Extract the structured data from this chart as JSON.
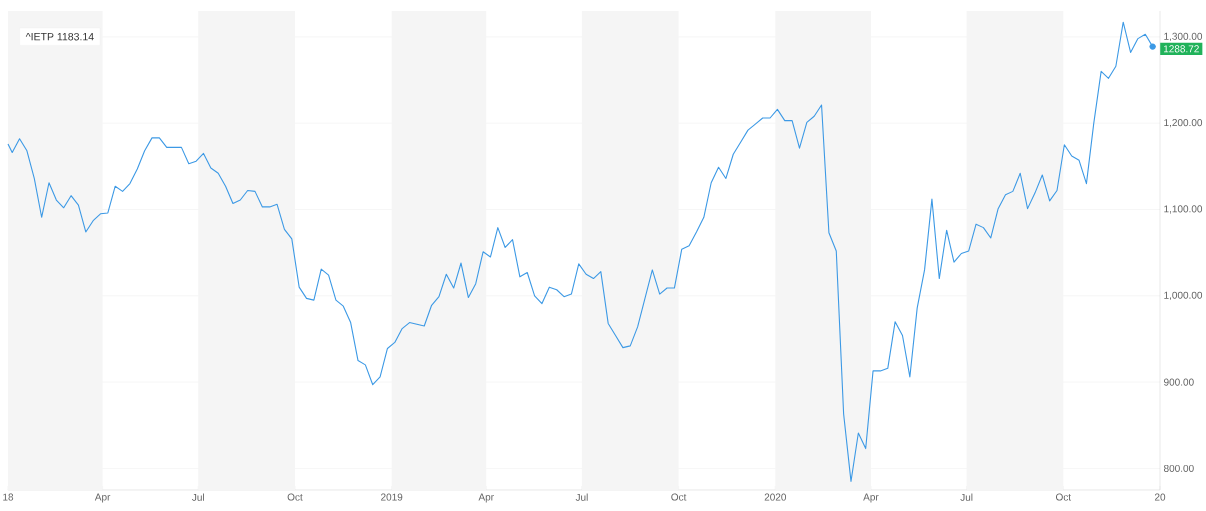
{
  "chart_data": {
    "type": "line",
    "x": [
      "2018-01-01",
      "2018-01-05",
      "2018-01-12",
      "2018-01-19",
      "2018-01-26",
      "2018-02-02",
      "2018-02-09",
      "2018-02-16",
      "2018-02-23",
      "2018-03-02",
      "2018-03-09",
      "2018-03-16",
      "2018-03-23",
      "2018-03-30",
      "2018-04-06",
      "2018-04-13",
      "2018-04-20",
      "2018-04-27",
      "2018-05-04",
      "2018-05-11",
      "2018-05-18",
      "2018-05-25",
      "2018-06-01",
      "2018-06-08",
      "2018-06-15",
      "2018-06-22",
      "2018-06-29",
      "2018-07-06",
      "2018-07-13",
      "2018-07-20",
      "2018-07-27",
      "2018-08-03",
      "2018-08-10",
      "2018-08-17",
      "2018-08-24",
      "2018-08-31",
      "2018-09-07",
      "2018-09-14",
      "2018-09-21",
      "2018-09-28",
      "2018-10-05",
      "2018-10-12",
      "2018-10-19",
      "2018-10-26",
      "2018-11-02",
      "2018-11-09",
      "2018-11-16",
      "2018-11-23",
      "2018-11-30",
      "2018-12-07",
      "2018-12-14",
      "2018-12-21",
      "2018-12-28",
      "2019-01-04",
      "2019-01-11",
      "2019-01-18",
      "2019-01-25",
      "2019-02-01",
      "2019-02-08",
      "2019-02-15",
      "2019-02-22",
      "2019-03-01",
      "2019-03-08",
      "2019-03-15",
      "2019-03-22",
      "2019-03-29",
      "2019-04-05",
      "2019-04-12",
      "2019-04-19",
      "2019-04-26",
      "2019-05-03",
      "2019-05-10",
      "2019-05-17",
      "2019-05-24",
      "2019-05-31",
      "2019-06-07",
      "2019-06-14",
      "2019-06-21",
      "2019-06-28",
      "2019-07-05",
      "2019-07-12",
      "2019-07-19",
      "2019-07-26",
      "2019-08-02",
      "2019-08-09",
      "2019-08-16",
      "2019-08-23",
      "2019-08-30",
      "2019-09-06",
      "2019-09-13",
      "2019-09-20",
      "2019-09-27",
      "2019-10-04",
      "2019-10-11",
      "2019-10-18",
      "2019-10-25",
      "2019-11-01",
      "2019-11-08",
      "2019-11-15",
      "2019-11-22",
      "2019-11-29",
      "2019-12-06",
      "2019-12-13",
      "2019-12-20",
      "2019-12-27",
      "2020-01-03",
      "2020-01-10",
      "2020-01-17",
      "2020-01-24",
      "2020-01-31",
      "2020-02-07",
      "2020-02-14",
      "2020-02-21",
      "2020-02-28",
      "2020-03-06",
      "2020-03-13",
      "2020-03-20",
      "2020-03-27",
      "2020-04-03",
      "2020-04-10",
      "2020-04-17",
      "2020-04-24",
      "2020-05-01",
      "2020-05-08",
      "2020-05-15",
      "2020-05-22",
      "2020-05-29",
      "2020-06-05",
      "2020-06-12",
      "2020-06-19",
      "2020-06-26",
      "2020-07-03",
      "2020-07-10",
      "2020-07-17",
      "2020-07-24",
      "2020-07-31",
      "2020-08-07",
      "2020-08-14",
      "2020-08-21",
      "2020-08-28",
      "2020-09-04",
      "2020-09-11",
      "2020-09-18",
      "2020-09-25",
      "2020-10-02",
      "2020-10-09",
      "2020-10-16",
      "2020-10-23",
      "2020-10-30",
      "2020-11-06",
      "2020-11-13",
      "2020-11-20",
      "2020-11-27",
      "2020-12-04",
      "2020-12-11",
      "2020-12-18",
      "2020-12-25"
    ],
    "series": [
      {
        "color": "#3c99e5",
        "values": [
          1176,
          1166,
          1182,
          1168,
          1136,
          1091,
          1131,
          1111,
          1102,
          1116,
          1105,
          1074,
          1087,
          1095,
          1096,
          1127,
          1121,
          1130,
          1147,
          1168,
          1183,
          1183,
          1172,
          1172,
          1172,
          1153,
          1156,
          1165,
          1148,
          1142,
          1127,
          1107,
          1111,
          1122,
          1121,
          1103,
          1103,
          1106,
          1077,
          1066,
          1010,
          997,
          995,
          1031,
          1024,
          995,
          988,
          969,
          925,
          920,
          897,
          906,
          939,
          946,
          962,
          969,
          967,
          965,
          989,
          999,
          1025,
          1009,
          1038,
          998,
          1014,
          1051,
          1045,
          1079,
          1056,
          1065,
          1022,
          1027,
          1000,
          991,
          1010,
          1007,
          999,
          1002,
          1037,
          1025,
          1020,
          1028,
          968,
          954,
          940,
          942,
          964,
          997,
          1030,
          1002,
          1009,
          1009,
          1054,
          1058,
          1074,
          1091,
          1131,
          1149,
          1136,
          1164,
          1178,
          1192,
          1199,
          1206,
          1206,
          1216,
          1203,
          1203,
          1171,
          1201,
          1208,
          1221,
          1073,
          1052,
          863,
          785,
          841,
          823,
          913,
          913,
          916,
          970,
          954,
          906,
          986,
          1030,
          1112,
          1020,
          1076,
          1039,
          1049,
          1052,
          1083,
          1079,
          1067,
          1101,
          1117,
          1121,
          1142,
          1101,
          1119,
          1140,
          1110,
          1122,
          1175,
          1162,
          1157,
          1130,
          1200,
          1260,
          1252,
          1266,
          1317,
          1282,
          1298,
          1303,
          1288.72
        ]
      }
    ],
    "xlim": [
      "2018-01-01",
      "2021-01-01"
    ],
    "xticks": [
      {
        "value": "2018-01-01",
        "label": "18"
      },
      {
        "value": "2018-04-01",
        "label": "Apr"
      },
      {
        "value": "2018-07-01",
        "label": "Jul"
      },
      {
        "value": "2018-10-01",
        "label": "Oct"
      },
      {
        "value": "2019-01-01",
        "label": "2019"
      },
      {
        "value": "2019-04-01",
        "label": "Apr"
      },
      {
        "value": "2019-07-01",
        "label": "Jul"
      },
      {
        "value": "2019-10-01",
        "label": "Oct"
      },
      {
        "value": "2020-01-01",
        "label": "2020"
      },
      {
        "value": "2020-04-01",
        "label": "Apr"
      },
      {
        "value": "2020-07-01",
        "label": "Jul"
      },
      {
        "value": "2020-10-01",
        "label": "Oct"
      },
      {
        "value": "2021-01-01",
        "label": "20"
      }
    ],
    "ylim": [
      775,
      1330
    ],
    "yticks": [
      {
        "value": 800,
        "label": "800.00"
      },
      {
        "value": 900,
        "label": "900.00"
      },
      {
        "value": 1000,
        "label": "1,000.00"
      },
      {
        "value": 1100,
        "label": "1,100.00"
      },
      {
        "value": 1200,
        "label": "1,200.00"
      },
      {
        "value": 1300,
        "label": "1,300.00"
      }
    ],
    "grid": "y",
    "bands": [
      {
        "axis": "x",
        "from": "2018-01-01",
        "to": "2018-04-01",
        "color": "#f5f5f5"
      },
      {
        "axis": "x",
        "from": "2018-07-01",
        "to": "2018-10-01",
        "color": "#f5f5f5"
      },
      {
        "axis": "x",
        "from": "2019-01-01",
        "to": "2019-04-01",
        "color": "#f5f5f5"
      },
      {
        "axis": "x",
        "from": "2019-07-01",
        "to": "2019-10-01",
        "color": "#f5f5f5"
      },
      {
        "axis": "x",
        "from": "2020-01-01",
        "to": "2020-04-01",
        "color": "#f5f5f5"
      },
      {
        "axis": "x",
        "from": "2020-07-01",
        "to": "2020-10-01",
        "color": "#f5f5f5"
      }
    ],
    "annotations": [
      "^IETP 1183.14",
      {
        "text": "1288.72",
        "x": "2020-12-25",
        "y": 1288.72
      }
    ]
  }
}
